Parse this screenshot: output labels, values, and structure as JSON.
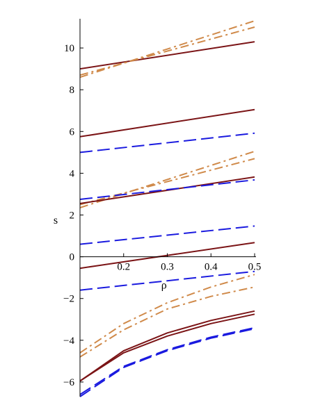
{
  "chart_data": {
    "type": "line",
    "title": "",
    "xlabel": "ρ",
    "ylabel": "s",
    "xlim": [
      0.1,
      0.5
    ],
    "ylim": [
      -6.7,
      11.4
    ],
    "xticks": [
      0.2,
      0.3,
      0.4,
      0.5
    ],
    "xtick_labels": [
      "0.2",
      "0.3",
      "0.4",
      "0.5"
    ],
    "yticks": [
      -6,
      -4,
      -2,
      0,
      2,
      4,
      6,
      8,
      10
    ],
    "ytick_labels": [
      "−6",
      "−4",
      "−2",
      "0",
      "2",
      "4",
      "6",
      "8",
      "10"
    ],
    "grid": false,
    "legend": "none",
    "colors": {
      "solid": "#7b1416",
      "dashed": "#1a1adf",
      "dashdot": "#d08a4a"
    },
    "series": [
      {
        "style": "solid",
        "color": "#7b1416",
        "x": [
          0.1,
          0.5
        ],
        "y": [
          9.0,
          10.3
        ]
      },
      {
        "style": "dashdot",
        "color": "#d08a4a",
        "x": [
          0.1,
          0.5
        ],
        "y": [
          8.6,
          11.3
        ]
      },
      {
        "style": "dashdot",
        "color": "#d08a4a",
        "x": [
          0.1,
          0.5
        ],
        "y": [
          8.7,
          11.0
        ]
      },
      {
        "style": "solid",
        "color": "#7b1416",
        "x": [
          0.1,
          0.5
        ],
        "y": [
          5.75,
          7.05
        ]
      },
      {
        "style": "dashed",
        "color": "#1a1adf",
        "x": [
          0.1,
          0.5
        ],
        "y": [
          5.0,
          5.92
        ]
      },
      {
        "style": "dashdot",
        "color": "#d08a4a",
        "x": [
          0.1,
          0.5
        ],
        "y": [
          2.35,
          5.05
        ]
      },
      {
        "style": "dashdot",
        "color": "#d08a4a",
        "x": [
          0.1,
          0.5
        ],
        "y": [
          2.5,
          4.7
        ]
      },
      {
        "style": "solid",
        "color": "#7b1416",
        "x": [
          0.1,
          0.5
        ],
        "y": [
          2.55,
          3.82
        ]
      },
      {
        "style": "dashed",
        "color": "#1a1adf",
        "x": [
          0.1,
          0.5
        ],
        "y": [
          2.75,
          3.68
        ]
      },
      {
        "style": "dashed",
        "color": "#1a1adf",
        "x": [
          0.1,
          0.5
        ],
        "y": [
          0.6,
          1.47
        ]
      },
      {
        "style": "solid",
        "color": "#7b1416",
        "x": [
          0.1,
          0.5
        ],
        "y": [
          -0.55,
          0.68
        ]
      },
      {
        "style": "dashed",
        "color": "#1a1adf",
        "x": [
          0.1,
          0.5
        ],
        "y": [
          -1.6,
          -0.7
        ]
      },
      {
        "style": "dashdot",
        "color": "#d08a4a",
        "x": [
          0.1,
          0.2,
          0.3,
          0.4,
          0.5
        ],
        "y": [
          -4.6,
          -3.2,
          -2.2,
          -1.45,
          -0.85
        ]
      },
      {
        "style": "dashdot",
        "color": "#d08a4a",
        "x": [
          0.1,
          0.2,
          0.3,
          0.4,
          0.5
        ],
        "y": [
          -4.8,
          -3.5,
          -2.5,
          -1.9,
          -1.45
        ]
      },
      {
        "style": "solid",
        "color": "#7b1416",
        "x": [
          0.1,
          0.2,
          0.3,
          0.4,
          0.5
        ],
        "y": [
          -5.95,
          -4.5,
          -3.65,
          -3.05,
          -2.6
        ]
      },
      {
        "style": "solid",
        "color": "#7b1416",
        "x": [
          0.1,
          0.2,
          0.3,
          0.4,
          0.5
        ],
        "y": [
          -5.95,
          -4.6,
          -3.8,
          -3.2,
          -2.75
        ]
      },
      {
        "style": "dashed",
        "color": "#1a1adf",
        "x": [
          0.1,
          0.2,
          0.3,
          0.4,
          0.5
        ],
        "y": [
          -6.6,
          -5.25,
          -4.45,
          -3.85,
          -3.4
        ]
      },
      {
        "style": "dashed",
        "color": "#1a1adf",
        "x": [
          0.1,
          0.2,
          0.3,
          0.4,
          0.5
        ],
        "y": [
          -6.7,
          -5.3,
          -4.5,
          -3.9,
          -3.45
        ]
      }
    ]
  }
}
